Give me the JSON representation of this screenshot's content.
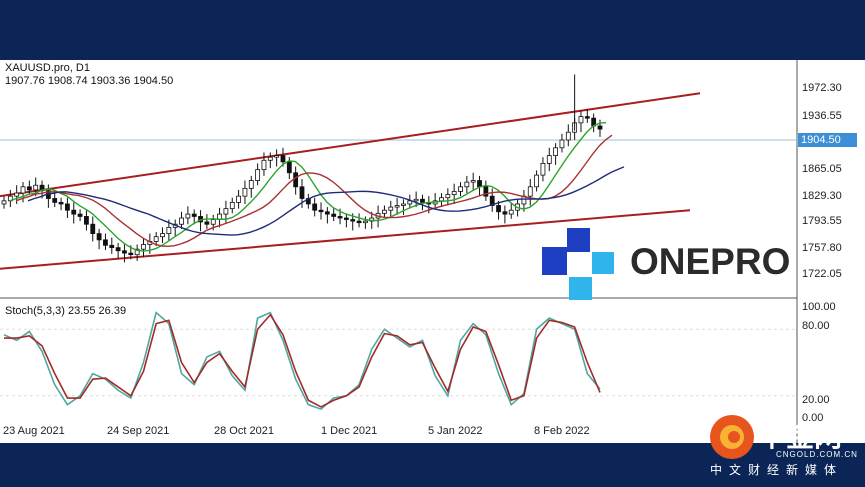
{
  "chart_data": [
    {
      "type": "candlestick",
      "title": "XAUUSD.pro, D1",
      "ohlc_label": "1907.76 1908.74 1903.36 1904.50",
      "ylim": [
        1690,
        1990
      ],
      "yticks": [
        "1972.30",
        "1936.55",
        "1865.05",
        "1829.30",
        "1793.55",
        "1757.80",
        "1722.05"
      ],
      "current_price": "1904.50",
      "xticks": [
        "23 Aug 2021",
        "24 Sep 2021",
        "28 Oct 2021",
        "1 Dec 2021",
        "5 Jan 2022",
        "8 Feb 2022"
      ],
      "close_series": [
        1812,
        1818,
        1822,
        1830,
        1826,
        1832,
        1825,
        1815,
        1810,
        1808,
        1800,
        1795,
        1792,
        1782,
        1770,
        1762,
        1755,
        1752,
        1748,
        1745,
        1743,
        1750,
        1756,
        1760,
        1766,
        1770,
        1778,
        1782,
        1790,
        1795,
        1792,
        1785,
        1782,
        1788,
        1795,
        1802,
        1810,
        1818,
        1828,
        1838,
        1852,
        1864,
        1868,
        1870,
        1862,
        1848,
        1830,
        1815,
        1808,
        1800,
        1798,
        1795,
        1792,
        1790,
        1788,
        1786,
        1784,
        1786,
        1790,
        1796,
        1800,
        1804,
        1806,
        1808,
        1812,
        1814,
        1810,
        1808,
        1812,
        1816,
        1820,
        1824,
        1830,
        1836,
        1838,
        1830,
        1818,
        1806,
        1798,
        1795,
        1800,
        1808,
        1818,
        1830,
        1845,
        1860,
        1870,
        1880,
        1890,
        1900,
        1912,
        1920,
        1918,
        1908,
        1904
      ],
      "channel": {
        "upper": [
          [
            0,
            1818
          ],
          [
            700,
            1950
          ]
        ],
        "lower": [
          [
            0,
            1725
          ],
          [
            690,
            1800
          ]
        ]
      }
    },
    {
      "type": "line",
      "title": "Stoch(5,3,3) 23.55 26.39",
      "ylim": [
        0,
        100
      ],
      "yticks": [
        "100.00",
        "80.00",
        "20.00",
        "0.00"
      ],
      "series": [
        {
          "values": [
            75,
            70,
            78,
            60,
            30,
            12,
            20,
            40,
            35,
            25,
            18,
            50,
            95,
            85,
            40,
            30,
            55,
            60,
            38,
            25,
            90,
            95,
            70,
            35,
            12,
            8,
            18,
            20,
            30,
            62,
            80,
            72,
            64,
            70,
            38,
            20,
            70,
            85,
            75,
            40,
            12,
            22,
            80,
            90,
            85,
            80,
            40,
            26
          ]
        },
        {
          "values": [
            72,
            72,
            74,
            65,
            40,
            18,
            18,
            35,
            36,
            28,
            20,
            42,
            85,
            88,
            50,
            32,
            50,
            58,
            42,
            28,
            80,
            93,
            75,
            42,
            16,
            10,
            16,
            20,
            28,
            55,
            76,
            74,
            66,
            68,
            45,
            24,
            62,
            82,
            78,
            48,
            16,
            20,
            72,
            88,
            86,
            82,
            50,
            23
          ]
        }
      ]
    }
  ],
  "brand": {
    "name": "ONEPRO"
  },
  "watermark": {
    "cn": "中金网",
    "en": "CNGOLD.COM.CN",
    "sub": "中文财经新媒体"
  }
}
